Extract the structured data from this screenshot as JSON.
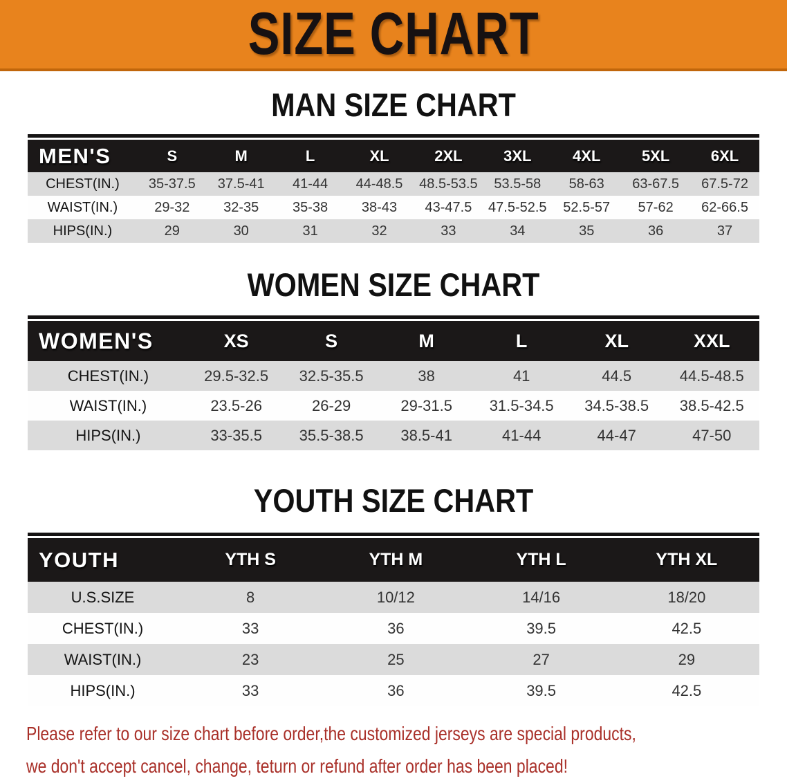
{
  "banner": {
    "title": "SIZE CHART"
  },
  "sections": [
    {
      "heading": "MAN SIZE CHART",
      "table": {
        "corner_label": "MEN'S",
        "columns": [
          "S",
          "M",
          "L",
          "XL",
          "2XL",
          "3XL",
          "4XL",
          "5XL",
          "6XL"
        ],
        "rows": [
          {
            "label": "CHEST(IN.)",
            "values": [
              "35-37.5",
              "37.5-41",
              "41-44",
              "44-48.5",
              "48.5-53.5",
              "53.5-58",
              "58-63",
              "63-67.5",
              "67.5-72"
            ]
          },
          {
            "label": "WAIST(IN.)",
            "values": [
              "29-32",
              "32-35",
              "35-38",
              "38-43",
              "43-47.5",
              "47.5-52.5",
              "52.5-57",
              "57-62",
              "62-66.5"
            ]
          },
          {
            "label": "HIPS(IN.)",
            "values": [
              "29",
              "30",
              "31",
              "32",
              "33",
              "34",
              "35",
              "36",
              "37"
            ]
          }
        ]
      }
    },
    {
      "heading": "WOMEN SIZE CHART",
      "table": {
        "corner_label": "WOMEN'S",
        "columns": [
          "XS",
          "S",
          "M",
          "L",
          "XL",
          "XXL"
        ],
        "rows": [
          {
            "label": "CHEST(IN.)",
            "values": [
              "29.5-32.5",
              "32.5-35.5",
              "38",
              "41",
              "44.5",
              "44.5-48.5"
            ]
          },
          {
            "label": "WAIST(IN.)",
            "values": [
              "23.5-26",
              "26-29",
              "29-31.5",
              "31.5-34.5",
              "34.5-38.5",
              "38.5-42.5"
            ]
          },
          {
            "label": "HIPS(IN.)",
            "values": [
              "33-35.5",
              "35.5-38.5",
              "38.5-41",
              "41-44",
              "44-47",
              "47-50"
            ]
          }
        ]
      }
    },
    {
      "heading": "YOUTH SIZE CHART",
      "table": {
        "corner_label": "YOUTH",
        "columns": [
          "YTH S",
          "YTH M",
          "YTH L",
          "YTH XL"
        ],
        "rows": [
          {
            "label": "U.S.SIZE",
            "values": [
              "8",
              "10/12",
              "14/16",
              "18/20"
            ]
          },
          {
            "label": "CHEST(IN.)",
            "values": [
              "33",
              "36",
              "39.5",
              "42.5"
            ]
          },
          {
            "label": "WAIST(IN.)",
            "values": [
              "23",
              "25",
              "27",
              "29"
            ]
          },
          {
            "label": "HIPS(IN.)",
            "values": [
              "33",
              "36",
              "39.5",
              "42.5"
            ]
          }
        ]
      }
    }
  ],
  "disclaimer": {
    "line1": "Please refer to our size chart before order,the customized jerseys are special products,",
    "line2": "we don't accept cancel, change, teturn or refund after order has been placed!"
  },
  "colors": {
    "banner_bg": "#e8831d",
    "banner_edge": "#c1660b",
    "header_bg": "#1b1818",
    "row_gray": "#dbdbdb",
    "disclaimer_red": "#a93029"
  }
}
